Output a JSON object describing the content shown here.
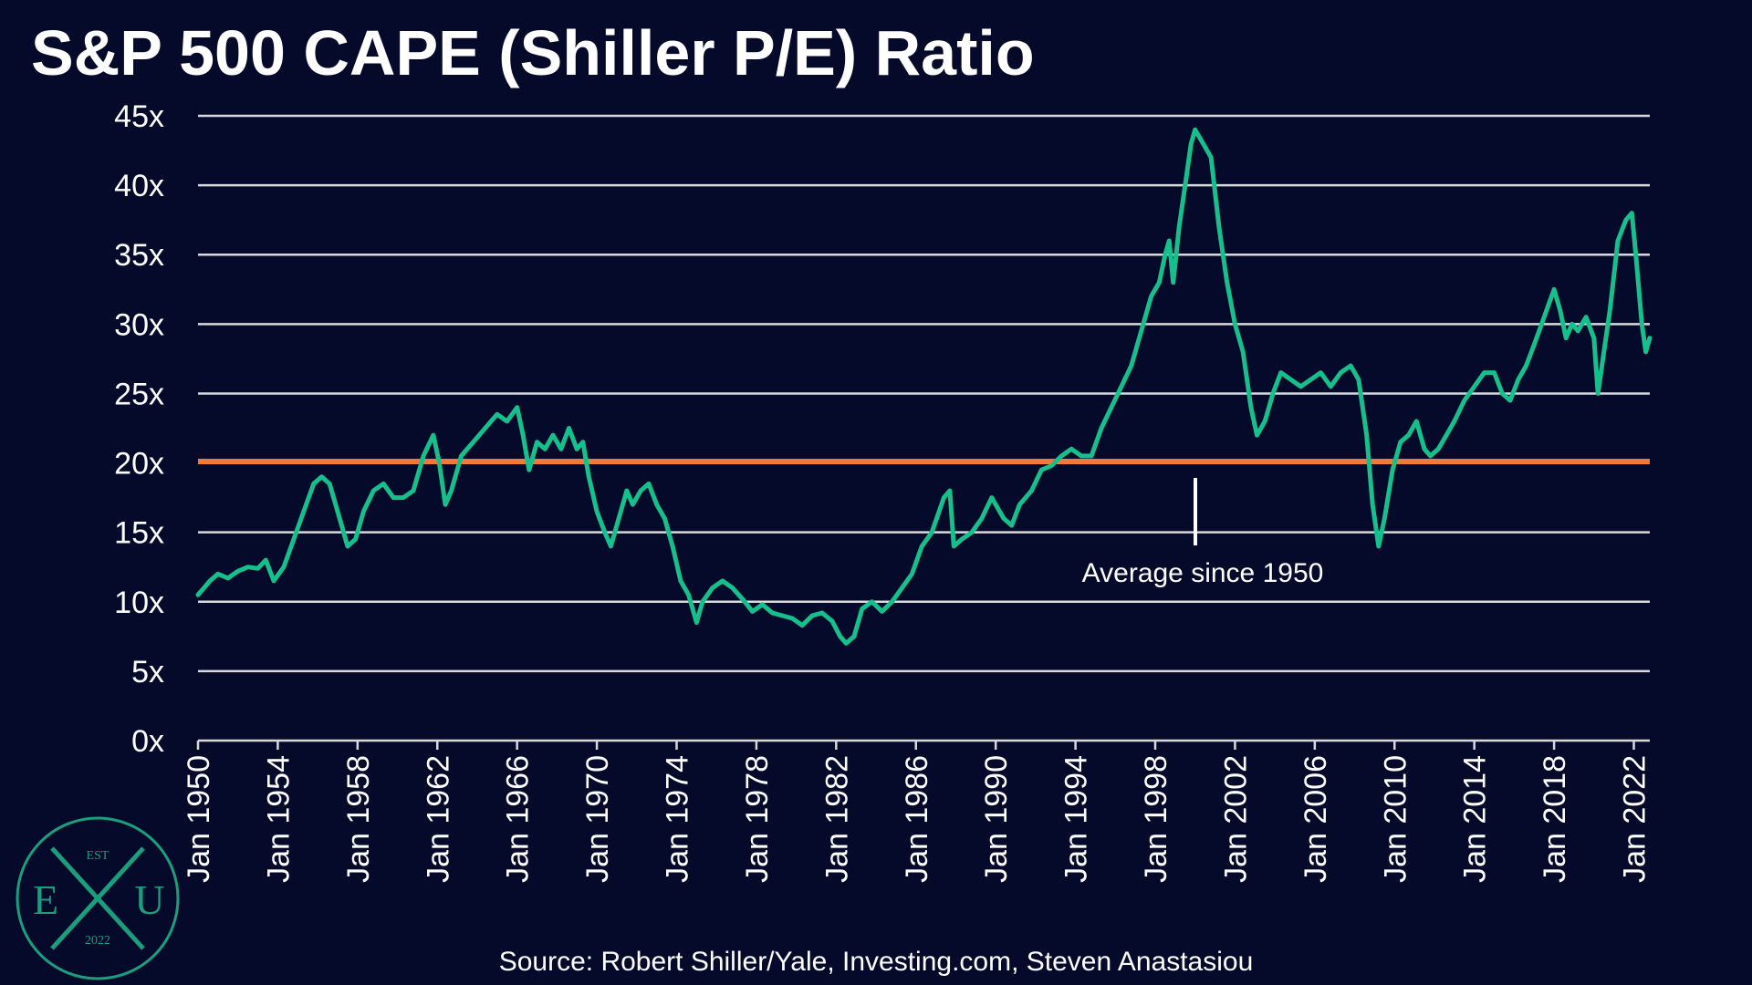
{
  "title": "S&P 500 CAPE (Shiller P/E) Ratio",
  "source": "Source: Robert Shiller/Yale, Investing.com, Steven Anastasiou",
  "annotation": "Average since 1950",
  "logo": {
    "top": "EST",
    "left": "E",
    "right": "U",
    "bottom": "2022"
  },
  "colors": {
    "background": "#060a2a",
    "line": "#16c08c",
    "average": "#f07a3a",
    "grid": "#d9d9d9",
    "logo": "#1a9e7c"
  },
  "chart_data": {
    "type": "line",
    "title": "S&P 500 CAPE (Shiller P/E) Ratio",
    "xlabel": "",
    "ylabel": "",
    "xlim": [
      1950,
      2022.8
    ],
    "ylim": [
      0,
      45
    ],
    "grid": true,
    "y_ticks": [
      "0x",
      "5x",
      "10x",
      "15x",
      "20x",
      "25x",
      "30x",
      "35x",
      "40x",
      "45x"
    ],
    "y_tick_values": [
      0,
      5,
      10,
      15,
      20,
      25,
      30,
      35,
      40,
      45
    ],
    "x_ticks": [
      "Jan 1950",
      "Jan 1954",
      "Jan 1958",
      "Jan 1962",
      "Jan 1966",
      "Jan 1970",
      "Jan 1974",
      "Jan 1978",
      "Jan 1982",
      "Jan 1986",
      "Jan 1990",
      "Jan 1994",
      "Jan 1998",
      "Jan 2002",
      "Jan 2006",
      "Jan 2010",
      "Jan 2014",
      "Jan 2018",
      "Jan 2022"
    ],
    "x_tick_values": [
      1950,
      1954,
      1958,
      1962,
      1966,
      1970,
      1974,
      1978,
      1982,
      1986,
      1990,
      1994,
      1998,
      2002,
      2006,
      2010,
      2014,
      2018,
      2022
    ],
    "average": {
      "label": "Average since 1950",
      "value": 20.1
    },
    "series": [
      {
        "name": "",
        "x": [
          1950.0,
          1950.3,
          1950.6,
          1951.0,
          1951.5,
          1952.0,
          1952.5,
          1953.0,
          1953.4,
          1953.8,
          1954.3,
          1954.8,
          1955.3,
          1955.8,
          1956.2,
          1956.6,
          1957.0,
          1957.5,
          1957.9,
          1958.3,
          1958.8,
          1959.3,
          1959.8,
          1960.3,
          1960.8,
          1961.3,
          1961.8,
          1962.1,
          1962.4,
          1962.7,
          1963.2,
          1963.8,
          1964.4,
          1965.0,
          1965.5,
          1966.0,
          1966.3,
          1966.6,
          1967.0,
          1967.4,
          1967.8,
          1968.2,
          1968.6,
          1969.0,
          1969.3,
          1969.6,
          1970.0,
          1970.4,
          1970.7,
          1971.1,
          1971.5,
          1971.8,
          1972.2,
          1972.6,
          1973.0,
          1973.4,
          1973.8,
          1974.2,
          1974.6,
          1975.0,
          1975.3,
          1975.8,
          1976.3,
          1976.8,
          1977.3,
          1977.8,
          1978.3,
          1978.8,
          1979.3,
          1979.8,
          1980.3,
          1980.8,
          1981.3,
          1981.8,
          1982.2,
          1982.5,
          1982.9,
          1983.3,
          1983.8,
          1984.3,
          1984.8,
          1985.3,
          1985.8,
          1986.3,
          1986.8,
          1987.4,
          1987.7,
          1987.9,
          1988.3,
          1988.8,
          1989.3,
          1989.8,
          1990.4,
          1990.8,
          1991.2,
          1991.8,
          1992.3,
          1992.8,
          1993.3,
          1993.8,
          1994.3,
          1994.8,
          1995.3,
          1995.8,
          1996.3,
          1996.8,
          1997.3,
          1997.8,
          1998.2,
          1998.5,
          1998.7,
          1998.9,
          1999.2,
          1999.5,
          1999.8,
          2000.0,
          2000.4,
          2000.8,
          2001.2,
          2001.6,
          2002.0,
          2002.4,
          2002.8,
          2003.1,
          2003.5,
          2003.9,
          2004.3,
          2004.8,
          2005.3,
          2005.8,
          2006.3,
          2006.8,
          2007.3,
          2007.8,
          2008.2,
          2008.6,
          2008.9,
          2009.2,
          2009.5,
          2009.9,
          2010.3,
          2010.7,
          2011.1,
          2011.5,
          2011.8,
          2012.2,
          2012.6,
          2013.0,
          2013.5,
          2014.0,
          2014.5,
          2015.0,
          2015.4,
          2015.8,
          2016.2,
          2016.6,
          2017.0,
          2017.5,
          2018.0,
          2018.3,
          2018.6,
          2018.9,
          2019.2,
          2019.6,
          2020.0,
          2020.2,
          2020.5,
          2020.8,
          2021.2,
          2021.6,
          2021.9,
          2022.1,
          2022.4,
          2022.6,
          2022.8
        ],
        "values": [
          10.5,
          11.0,
          11.5,
          12.0,
          11.7,
          12.2,
          12.5,
          12.4,
          13.0,
          11.5,
          12.5,
          14.5,
          16.5,
          18.5,
          19.0,
          18.5,
          16.5,
          14.0,
          14.5,
          16.5,
          18.0,
          18.5,
          17.5,
          17.5,
          18.0,
          20.5,
          22.0,
          20.0,
          17.0,
          18.0,
          20.5,
          21.5,
          22.5,
          23.5,
          23.0,
          24.0,
          22.0,
          19.5,
          21.5,
          21.0,
          22.0,
          21.0,
          22.5,
          21.0,
          21.5,
          19.0,
          16.5,
          15.0,
          14.0,
          16.0,
          18.0,
          17.0,
          18.0,
          18.5,
          17.0,
          16.0,
          14.0,
          11.5,
          10.5,
          8.5,
          10.0,
          11.0,
          11.5,
          11.0,
          10.2,
          9.3,
          9.8,
          9.2,
          9.0,
          8.8,
          8.3,
          9.0,
          9.2,
          8.6,
          7.5,
          7.0,
          7.5,
          9.5,
          10.0,
          9.3,
          10.0,
          11.0,
          12.0,
          14.0,
          15.0,
          17.5,
          18.0,
          14.0,
          14.5,
          15.0,
          16.0,
          17.5,
          16.0,
          15.5,
          17.0,
          18.0,
          19.5,
          19.8,
          20.5,
          21.0,
          20.5,
          20.5,
          22.5,
          24.0,
          25.5,
          27.0,
          29.5,
          32.0,
          33.0,
          35.0,
          36.0,
          33.0,
          37.0,
          40.0,
          43.0,
          44.0,
          43.0,
          42.0,
          37.0,
          33.0,
          30.0,
          28.0,
          24.0,
          22.0,
          23.0,
          25.0,
          26.5,
          26.0,
          25.5,
          26.0,
          26.5,
          25.5,
          26.5,
          27.0,
          26.0,
          22.0,
          17.0,
          14.0,
          16.0,
          19.5,
          21.5,
          22.0,
          23.0,
          21.0,
          20.5,
          21.0,
          22.0,
          23.0,
          24.5,
          25.5,
          26.5,
          26.5,
          25.0,
          24.5,
          26.0,
          27.0,
          28.5,
          30.5,
          32.5,
          31.0,
          29.0,
          30.0,
          29.5,
          30.5,
          29.0,
          25.0,
          28.0,
          31.0,
          36.0,
          37.5,
          38.0,
          35.0,
          30.0,
          28.0,
          29.0
        ]
      }
    ]
  }
}
